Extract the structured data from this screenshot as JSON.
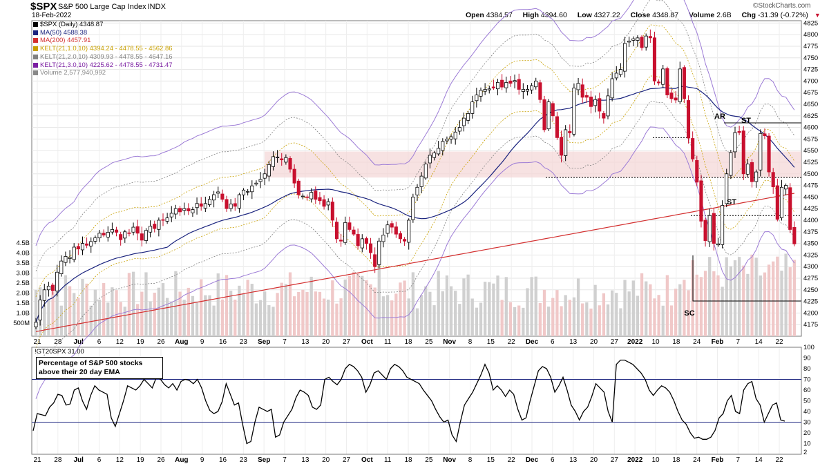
{
  "header": {
    "symbol": "$SPX",
    "name": "S&P 500 Large Cap Index",
    "exchange": "INDX",
    "date": "18-Feb-2022",
    "logo": "©StockCharts.com",
    "ohlc": {
      "open_label": "Open",
      "open": "4384.57",
      "high_label": "High",
      "high": "4394.60",
      "low_label": "Low",
      "low": "4327.22",
      "close_label": "Close",
      "close": "4348.87",
      "volume_label": "Volume",
      "volume": "2.6B",
      "chg_label": "Chg",
      "chg": "-31.39 (-0.72%)"
    }
  },
  "legend": [
    {
      "text": "$SPX (Daily) 4348.87",
      "color": "#000000"
    },
    {
      "text": "MA(50) 4588.38",
      "color": "#1a237e"
    },
    {
      "text": "MA(200) 4457.91",
      "color": "#d32f2f"
    },
    {
      "text": "KELT(21,1.0,10) 4394.24 - 4478.55 - 4562.86",
      "color": "#c8a000"
    },
    {
      "text": "KELT(21,2.0,10) 4309.93 - 4478.55 - 4647.16",
      "color": "#808080"
    },
    {
      "text": "KELT(21,3.0,10) 4225.62 - 4478.55 - 4731.47",
      "color": "#7b1fa2"
    },
    {
      "text": "Volume 2,577,940,992",
      "color": "#888888"
    }
  ],
  "indicator": {
    "title": "!GT20SPX 31.00",
    "box_line1": "Percentage of S&P 500 stocks",
    "box_line2": "above their 20 day EMA"
  },
  "annotations": {
    "ar": "AR",
    "st1": "ST",
    "st2": "ST",
    "sc": "SC"
  },
  "colors": {
    "up": "#000000",
    "down": "#c8102e",
    "ma50": "#1a237e",
    "ma200": "#d32f2f",
    "kelt1": "#c8a000",
    "kelt2": "#808080",
    "kelt3": "#9c7bd6",
    "zone": "#f4d6d6",
    "vol_up": "#d0d0d0",
    "vol_down": "#f0c8c8"
  },
  "chart_data": [
    {
      "type": "candlestick",
      "title": "$SPX S&P 500 Large Cap Index",
      "ylim": [
        4150,
        4830
      ],
      "yticks": [
        4175,
        4200,
        4225,
        4250,
        4275,
        4300,
        4325,
        4350,
        4375,
        4400,
        4425,
        4450,
        4475,
        4500,
        4525,
        4550,
        4575,
        4600,
        4625,
        4650,
        4675,
        4700,
        4725,
        4750,
        4775,
        4800,
        4825
      ],
      "volume_ticks": [
        "500M",
        "1.0B",
        "1.5B",
        "2.0B",
        "2.5B",
        "3.0B",
        "3.5B",
        "4.0B",
        "4.5B"
      ],
      "x_labels": [
        "21",
        "28",
        "Jul",
        "6",
        "12",
        "19",
        "26",
        "Aug",
        "9",
        "16",
        "23",
        "Sep",
        "7",
        "13",
        "20",
        "27",
        "Oct",
        "11",
        "18",
        "25",
        "Nov",
        "8",
        "15",
        "22",
        "Dec",
        "6",
        "13",
        "20",
        "27",
        "2022",
        "10",
        "18",
        "24",
        "Feb",
        "7",
        "14",
        "22"
      ],
      "x_label_bold": [
        "Jul",
        "Aug",
        "Sep",
        "Oct",
        "Nov",
        "Dec",
        "2022",
        "Feb"
      ],
      "trend": [
        4180,
        4228,
        4250,
        4258,
        4248,
        4288,
        4312,
        4322,
        4320,
        4342,
        4338,
        4350,
        4346,
        4354,
        4362,
        4372,
        4368,
        4374,
        4380,
        4374,
        4358,
        4375,
        4372,
        4385,
        4372,
        4357,
        4378,
        4387,
        4382,
        4400,
        4400,
        4405,
        4415,
        4425,
        4418,
        4425,
        4420,
        4423,
        4436,
        4430,
        4436,
        4445,
        4455,
        4461,
        4445,
        4425,
        4435,
        4430,
        4455,
        4465,
        4462,
        4474,
        4480,
        4488,
        4500,
        4520,
        4537,
        4536,
        4530,
        4535,
        4510,
        4480,
        4455,
        4452,
        4450,
        4460,
        4445,
        4442,
        4430,
        4440,
        4400,
        4360,
        4355,
        4395,
        4380,
        4370,
        4345,
        4360,
        4350,
        4330,
        4300,
        4355,
        4368,
        4390,
        4385,
        4370,
        4360,
        4355,
        4400,
        4450,
        4471,
        4495,
        4521,
        4540,
        4545,
        4555,
        4570,
        4575,
        4580,
        4590,
        4600,
        4620,
        4630,
        4655,
        4670,
        4680,
        4682,
        4683,
        4685,
        4697,
        4687,
        4697,
        4695,
        4701,
        4682,
        4682,
        4682,
        4690,
        4700,
        4660,
        4595,
        4655,
        4625,
        4578,
        4540,
        4595,
        4588,
        4685,
        4695,
        4665,
        4665,
        4645,
        4660,
        4635,
        4620,
        4668,
        4705,
        4717,
        4725,
        4781,
        4786,
        4791,
        4793,
        4772,
        4797,
        4793,
        4700,
        4696,
        4726,
        4670,
        4662,
        4659,
        4726,
        4662,
        4577,
        4532,
        4482,
        4398,
        4356,
        4410,
        4350,
        4349,
        4432,
        4500,
        4546,
        4589,
        4589,
        4500,
        4521,
        4483,
        4504,
        4587,
        4582,
        4504,
        4472,
        4402,
        4471,
        4475,
        4380,
        4349
      ],
      "close": 4348.87,
      "volume_billions": "approximate daily bars, 0.5B - 4.5B"
    },
    {
      "type": "line",
      "title": "!GT20SPX",
      "ylim": [
        0,
        100
      ],
      "yticks": [
        2,
        10,
        20,
        30,
        40,
        50,
        60,
        70,
        80,
        90,
        100
      ],
      "reference_lines": [
        30,
        70
      ],
      "last": 31.0,
      "values": [
        22,
        38,
        37,
        36,
        44,
        48,
        56,
        55,
        46,
        47,
        60,
        62,
        50,
        42,
        55,
        64,
        60,
        58,
        56,
        34,
        26,
        38,
        50,
        64,
        62,
        60,
        64,
        70,
        66,
        62,
        72,
        70,
        65,
        62,
        66,
        60,
        68,
        70,
        69,
        66,
        70,
        62,
        50,
        41,
        38,
        40,
        49,
        66,
        56,
        46,
        48,
        28,
        10,
        12,
        30,
        44,
        42,
        40,
        42,
        16,
        18,
        30,
        36,
        42,
        53,
        60,
        58,
        55,
        44,
        42,
        46,
        70,
        72,
        68,
        65,
        70,
        80,
        84,
        82,
        78,
        72,
        58,
        65,
        76,
        78,
        74,
        70,
        80,
        84,
        82,
        78,
        72,
        70,
        68,
        66,
        60,
        55,
        50,
        42,
        35,
        30,
        32,
        18,
        12,
        30,
        46,
        52,
        58,
        66,
        74,
        84,
        76,
        60,
        64,
        60,
        54,
        60,
        56,
        42,
        32,
        34,
        50,
        64,
        78,
        82,
        80,
        72,
        58,
        64,
        72,
        60,
        46,
        40,
        32,
        40,
        44,
        54,
        66,
        62,
        58,
        40,
        30,
        84,
        88,
        88,
        86,
        84,
        80,
        76,
        70,
        60,
        55,
        60,
        64,
        62,
        58,
        50,
        40,
        32,
        28,
        20,
        15,
        16,
        14,
        14,
        16,
        22,
        34,
        38,
        50,
        55,
        40,
        38,
        60,
        66,
        68,
        52,
        46,
        30,
        38,
        46,
        48,
        32,
        31
      ]
    }
  ]
}
